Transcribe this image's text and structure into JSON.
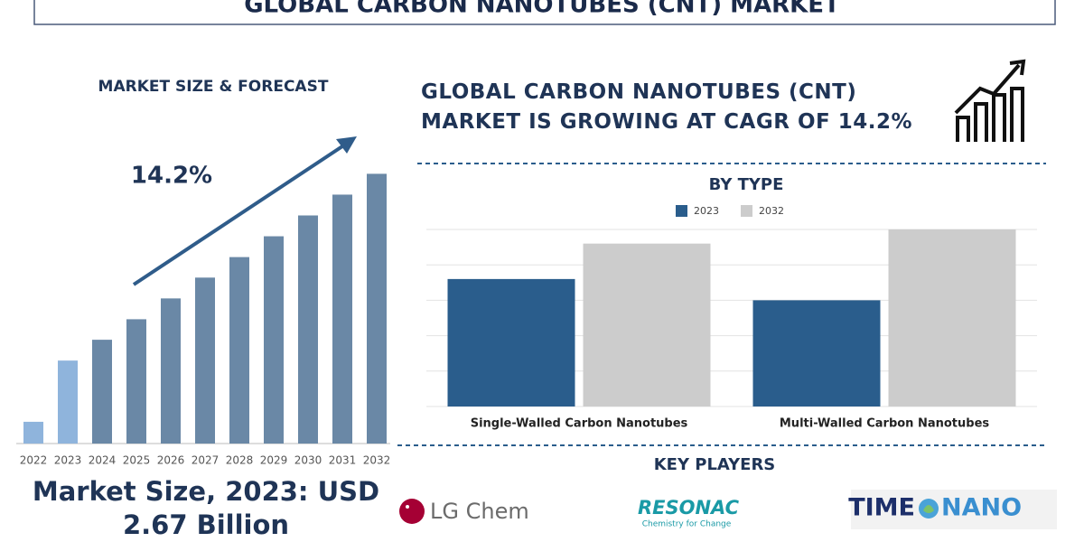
{
  "header": {
    "title": "GLOBAL CARBON NANOTUBES (CNT) MARKET"
  },
  "headline": "GLOBAL CARBON NANOTUBES (CNT) MARKET IS GROWING AT CAGR OF 14.2%",
  "market_size": "Market Size, 2023: USD 2.67 Billion",
  "key_players": {
    "title": "KEY PLAYERS",
    "lg": "LG Chem",
    "resonac": {
      "name": "RESONAC",
      "tagline": "Chemistry for Change"
    },
    "timenano": {
      "left": "TIME",
      "right": "NANO"
    }
  },
  "chart_data": [
    {
      "type": "bar",
      "title": "MARKET SIZE & FORECAST",
      "annotation": "14.2%",
      "categories": [
        "2022",
        "2023",
        "2024",
        "2025",
        "2026",
        "2027",
        "2028",
        "2029",
        "2030",
        "2031",
        "2032"
      ],
      "values": [
        0.7,
        2.67,
        3.34,
        4.0,
        4.67,
        5.34,
        6.0,
        6.67,
        7.34,
        8.01,
        8.68
      ],
      "colors": [
        "#8fb4dc",
        "#8fb4dc",
        "#6a88a6",
        "#6a88a6",
        "#6a88a6",
        "#6a88a6",
        "#6a88a6",
        "#6a88a6",
        "#6a88a6",
        "#6a88a6",
        "#6a88a6"
      ],
      "ylim": [
        0,
        10
      ]
    },
    {
      "type": "grouped_bar",
      "title": "BY TYPE",
      "categories": [
        "Single-Walled Carbon Nanotubes",
        "Multi-Walled Carbon Nanotubes"
      ],
      "series": [
        {
          "name": "2023",
          "color": "#2a5d8c",
          "values": [
            3.6,
            3.0
          ]
        },
        {
          "name": "2032",
          "color": "#cccccc",
          "values": [
            4.6,
            5.0
          ]
        }
      ],
      "ylim": [
        0,
        5
      ],
      "yticks": [
        0,
        1,
        2,
        3,
        4,
        5
      ],
      "grid": true
    }
  ]
}
